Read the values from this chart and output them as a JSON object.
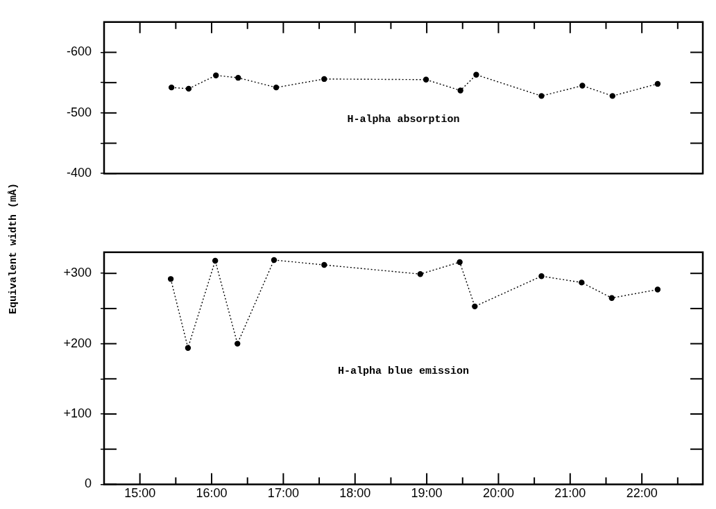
{
  "chart_data": [
    {
      "type": "line",
      "ylabel": "Equivalent width (mÅ)",
      "xlim": [
        14.5,
        22.85
      ],
      "xticks": [
        {
          "value": 15,
          "label": null
        },
        {
          "value": 15.5,
          "label": null
        },
        {
          "value": 16,
          "label": null
        },
        {
          "value": 16.5,
          "label": null
        },
        {
          "value": 17,
          "label": null
        },
        {
          "value": 17.5,
          "label": null
        },
        {
          "value": 18,
          "label": null
        },
        {
          "value": 18.5,
          "label": null
        },
        {
          "value": 19,
          "label": null
        },
        {
          "value": 19.5,
          "label": null
        },
        {
          "value": 20,
          "label": null
        },
        {
          "value": 20.5,
          "label": null
        },
        {
          "value": 21,
          "label": null
        },
        {
          "value": 21.5,
          "label": null
        },
        {
          "value": 22,
          "label": null
        },
        {
          "value": 22.5,
          "label": null
        }
      ],
      "ylim": [
        -400,
        -650
      ],
      "yticks": [
        -400,
        {
          "value": -450,
          "label": null
        },
        -500,
        {
          "value": -550,
          "label": null
        },
        -600
      ],
      "tick_labels": "y",
      "grid": false,
      "legend": false,
      "marker": "circle",
      "line_style": "dotted",
      "x": [
        15.44,
        15.68,
        16.06,
        16.37,
        16.9,
        17.57,
        18.99,
        19.47,
        19.69,
        20.6,
        21.17,
        21.59,
        22.22
      ],
      "series": [
        {
          "name": "H-alpha absorption",
          "color": "#000000",
          "values": [
            -542,
            -540,
            -562,
            -558,
            -542,
            -556,
            -555,
            -537,
            -563,
            -528,
            -545,
            -528,
            -548
          ]
        }
      ]
    },
    {
      "type": "line",
      "xlim": [
        14.5,
        22.85
      ],
      "xticks": [
        {
          "value": 15,
          "label": "15:00"
        },
        {
          "value": 15.5,
          "label": null
        },
        {
          "value": 16,
          "label": "16:00"
        },
        {
          "value": 16.5,
          "label": null
        },
        {
          "value": 17,
          "label": "17:00"
        },
        {
          "value": 17.5,
          "label": null
        },
        {
          "value": 18,
          "label": "18:00"
        },
        {
          "value": 18.5,
          "label": null
        },
        {
          "value": 19,
          "label": "19:00"
        },
        {
          "value": 19.5,
          "label": null
        },
        {
          "value": 20,
          "label": "20:00"
        },
        {
          "value": 20.5,
          "label": null
        },
        {
          "value": 21,
          "label": "21:00"
        },
        {
          "value": 21.5,
          "label": null
        },
        {
          "value": 22,
          "label": "22:00"
        },
        {
          "value": 22.5,
          "label": null
        }
      ],
      "ylim": [
        0,
        330
      ],
      "yticks": [
        0,
        {
          "value": 50,
          "label": null
        },
        {
          "value": 100,
          "label": "+100"
        },
        {
          "value": 150,
          "label": null
        },
        {
          "value": 200,
          "label": "+200"
        },
        {
          "value": 250,
          "label": null
        },
        {
          "value": 300,
          "label": "+300"
        }
      ],
      "grid": false,
      "legend": false,
      "marker": "circle",
      "line_style": "dotted",
      "x": [
        15.43,
        15.67,
        16.05,
        16.36,
        16.87,
        17.57,
        18.91,
        19.46,
        19.67,
        20.6,
        21.16,
        21.58,
        22.22
      ],
      "series": [
        {
          "name": "H-alpha blue emission",
          "color": "#000000",
          "values": [
            292,
            194,
            318,
            200,
            319,
            312,
            299,
            316,
            253,
            296,
            287,
            265,
            277
          ]
        }
      ]
    }
  ]
}
